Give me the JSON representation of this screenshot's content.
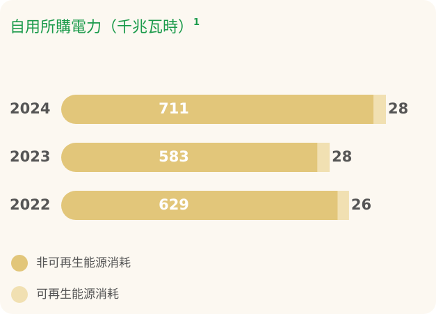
{
  "chart_data": {
    "type": "stacked_bar_horizontal",
    "title": "自用所購電力（千兆瓦時）",
    "title_note": "1",
    "categories": [
      "2024",
      "2023",
      "2022"
    ],
    "series": [
      {
        "name": "非可再生能源消耗",
        "color": "#e2c67a",
        "values": [
          711,
          583,
          629
        ]
      },
      {
        "name": "可再生能源消耗",
        "color": "#f1e0b2",
        "values": [
          28,
          28,
          26
        ]
      }
    ]
  }
}
